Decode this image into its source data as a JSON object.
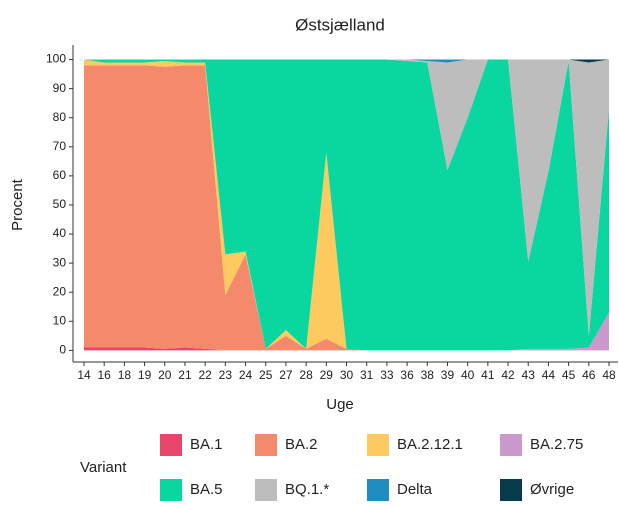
{
  "chart_data": {
    "type": "area",
    "stacked": true,
    "title": "Østsjælland",
    "x_label": "Uge",
    "y_label": "Procent",
    "legend_title": "Variant",
    "categories": [
      "14",
      "16",
      "18",
      "19",
      "20",
      "21",
      "22",
      "23",
      "24",
      "25",
      "27",
      "28",
      "29",
      "30",
      "31",
      "33",
      "36",
      "38",
      "39",
      "40",
      "41",
      "42",
      "43",
      "44",
      "45",
      "46",
      "48"
    ],
    "ylim": [
      -4,
      105
    ],
    "yticks": [
      0,
      10,
      20,
      30,
      40,
      50,
      60,
      70,
      80,
      90,
      100
    ],
    "series": [
      {
        "name": "BA.1",
        "color": "#e8456c",
        "values": [
          1,
          1,
          1,
          1,
          0.5,
          1,
          0.5,
          0,
          0,
          0,
          0,
          0,
          0,
          0,
          0,
          0,
          0,
          0,
          0,
          0,
          0,
          0,
          0,
          0,
          0,
          0,
          0
        ]
      },
      {
        "name": "BA.2",
        "color": "#f4896b",
        "values": [
          97,
          97,
          97,
          97,
          97,
          97,
          97.5,
          19,
          33,
          0.5,
          5,
          0.5,
          4,
          0.5,
          0,
          0,
          0,
          0,
          0,
          0,
          0,
          0,
          0,
          0,
          0,
          0,
          0
        ]
      },
      {
        "name": "BA.2.12.1",
        "color": "#fdca5f",
        "values": [
          2,
          1,
          1,
          1,
          2,
          1,
          1,
          14,
          1,
          0,
          2,
          0,
          64,
          0,
          0,
          0,
          0,
          0,
          0,
          0,
          0,
          0,
          0,
          0,
          0,
          0,
          0
        ]
      },
      {
        "name": "BA.2.75",
        "color": "#cc99cc",
        "values": [
          0,
          0,
          0,
          0,
          0,
          0,
          0,
          0,
          0,
          0,
          0,
          0,
          0,
          0,
          0,
          0,
          0,
          0,
          0,
          0,
          0,
          0,
          0.5,
          0.5,
          0.5,
          1,
          13
        ]
      },
      {
        "name": "BA.5",
        "color": "#0ad6a0",
        "values": [
          0,
          1,
          1,
          1,
          0.5,
          1,
          1,
          67,
          66,
          99.5,
          93,
          99.5,
          32,
          99.5,
          100,
          100,
          99.5,
          99,
          62,
          80,
          100,
          100,
          30,
          61,
          99,
          4,
          70
        ]
      },
      {
        "name": "BQ.1.*",
        "color": "#bdbdbd",
        "values": [
          0,
          0,
          0,
          0,
          0,
          0,
          0,
          0,
          0,
          0,
          0,
          0,
          0,
          0,
          0,
          0,
          0.5,
          0.5,
          37,
          20,
          0,
          0,
          69.5,
          38.5,
          0.5,
          94,
          17
        ]
      },
      {
        "name": "Delta",
        "color": "#1f8dbf",
        "values": [
          0,
          0,
          0,
          0,
          0,
          0,
          0,
          0,
          0,
          0,
          0,
          0,
          0,
          0,
          0,
          0,
          0,
          0.5,
          1,
          0,
          0,
          0,
          0,
          0,
          0,
          0,
          0
        ]
      },
      {
        "name": "Øvrige",
        "color": "#073a4b",
        "values": [
          0,
          0,
          0,
          0,
          0,
          0,
          0,
          0,
          0,
          0,
          0,
          0,
          0,
          0,
          0,
          0,
          0,
          0,
          0,
          0,
          0,
          0,
          0,
          0,
          0,
          1,
          0
        ]
      }
    ]
  }
}
